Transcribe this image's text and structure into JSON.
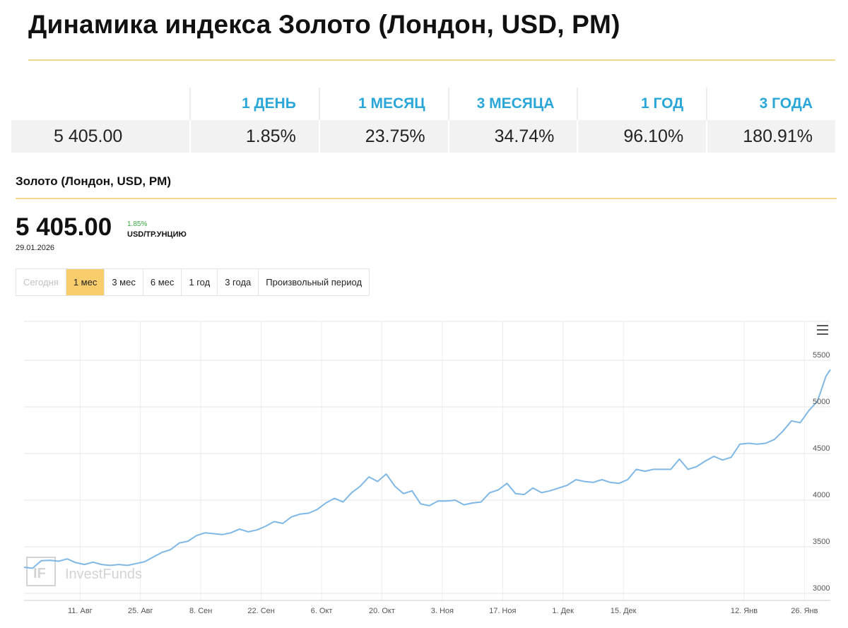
{
  "page": {
    "title": "Динамика индекса Золото (Лондон, USD, PM)"
  },
  "performance": {
    "headers": [
      "1 ДЕНЬ",
      "1 МЕСЯЦ",
      "3 МЕСЯЦА",
      "1 ГОД",
      "3 ГОДА"
    ],
    "price": "5 405.00",
    "values": [
      "1.85%",
      "23.75%",
      "34.74%",
      "96.10%",
      "180.91%"
    ]
  },
  "quote": {
    "name": "Золото (Лондон, USD, PM)",
    "price": "5 405.00",
    "change": "1.85%",
    "unit": "USD/ТР.УНЦИЮ",
    "date": "29.01.2026"
  },
  "periods": [
    {
      "label": "Сегодня",
      "state": "disabled"
    },
    {
      "label": "1 мес",
      "state": "active"
    },
    {
      "label": "3 мес",
      "state": "normal"
    },
    {
      "label": "6 мес",
      "state": "normal"
    },
    {
      "label": "1 год",
      "state": "normal"
    },
    {
      "label": "3 года",
      "state": "normal"
    },
    {
      "label": "Произвольный период",
      "state": "normal"
    }
  ],
  "watermark": "InvestFunds",
  "colors": {
    "accent": "#f9cd6b",
    "line": "#7fb8e6",
    "header": "#2aa7d8",
    "positive": "#3aa845"
  },
  "chart_data": {
    "type": "line",
    "title": "",
    "xlabel": "",
    "ylabel": "",
    "ylim": [
      3000,
      5750
    ],
    "yticks": [
      3000,
      3500,
      4000,
      4500,
      5000,
      5500
    ],
    "xticks": [
      {
        "label": "11. Авг",
        "x": 10
      },
      {
        "label": "25. Авг",
        "x": 24
      },
      {
        "label": "8. Сен",
        "x": 38
      },
      {
        "label": "22. Сен",
        "x": 52
      },
      {
        "label": "6. Окт",
        "x": 66
      },
      {
        "label": "20. Окт",
        "x": 80
      },
      {
        "label": "3. Ноя",
        "x": 94
      },
      {
        "label": "17. Ноя",
        "x": 108
      },
      {
        "label": "1. Дек",
        "x": 122
      },
      {
        "label": "15. Дек",
        "x": 136
      },
      {
        "label": "12. Янв",
        "x": 164
      },
      {
        "label": "26. Янв",
        "x": 178
      }
    ],
    "grid": true,
    "legend": "none",
    "series": [
      {
        "points": [
          [
            -3,
            3280
          ],
          [
            -1,
            3270
          ],
          [
            1,
            3350
          ],
          [
            3,
            3355
          ],
          [
            5,
            3345
          ],
          [
            7,
            3370
          ],
          [
            9,
            3330
          ],
          [
            11,
            3310
          ],
          [
            13,
            3335
          ],
          [
            15,
            3310
          ],
          [
            17,
            3300
          ],
          [
            19,
            3310
          ],
          [
            21,
            3300
          ],
          [
            23,
            3320
          ],
          [
            25,
            3340
          ],
          [
            27,
            3390
          ],
          [
            29,
            3440
          ],
          [
            31,
            3470
          ],
          [
            33,
            3540
          ],
          [
            35,
            3560
          ],
          [
            37,
            3620
          ],
          [
            39,
            3650
          ],
          [
            41,
            3640
          ],
          [
            43,
            3630
          ],
          [
            45,
            3650
          ],
          [
            47,
            3690
          ],
          [
            49,
            3660
          ],
          [
            51,
            3680
          ],
          [
            53,
            3720
          ],
          [
            55,
            3770
          ],
          [
            57,
            3750
          ],
          [
            59,
            3820
          ],
          [
            61,
            3850
          ],
          [
            63,
            3860
          ],
          [
            65,
            3900
          ],
          [
            67,
            3970
          ],
          [
            69,
            4020
          ],
          [
            71,
            3980
          ],
          [
            73,
            4080
          ],
          [
            75,
            4150
          ],
          [
            77,
            4250
          ],
          [
            79,
            4200
          ],
          [
            81,
            4280
          ],
          [
            83,
            4150
          ],
          [
            85,
            4070
          ],
          [
            87,
            4100
          ],
          [
            89,
            3960
          ],
          [
            91,
            3940
          ],
          [
            93,
            3990
          ],
          [
            95,
            3990
          ],
          [
            97,
            4000
          ],
          [
            99,
            3950
          ],
          [
            101,
            3970
          ],
          [
            103,
            3980
          ],
          [
            105,
            4080
          ],
          [
            107,
            4110
          ],
          [
            109,
            4180
          ],
          [
            111,
            4070
          ],
          [
            113,
            4060
          ],
          [
            115,
            4130
          ],
          [
            117,
            4080
          ],
          [
            119,
            4100
          ],
          [
            121,
            4130
          ],
          [
            123,
            4160
          ],
          [
            125,
            4220
          ],
          [
            127,
            4200
          ],
          [
            129,
            4190
          ],
          [
            131,
            4220
          ],
          [
            133,
            4190
          ],
          [
            135,
            4180
          ],
          [
            137,
            4220
          ],
          [
            139,
            4330
          ],
          [
            141,
            4310
          ],
          [
            143,
            4330
          ],
          [
            145,
            4330
          ],
          [
            147,
            4330
          ],
          [
            149,
            4440
          ],
          [
            151,
            4330
          ],
          [
            153,
            4360
          ],
          [
            155,
            4420
          ],
          [
            157,
            4470
          ],
          [
            159,
            4430
          ],
          [
            161,
            4460
          ],
          [
            163,
            4600
          ],
          [
            165,
            4610
          ],
          [
            167,
            4600
          ],
          [
            169,
            4610
          ],
          [
            171,
            4650
          ],
          [
            173,
            4740
          ],
          [
            175,
            4850
          ],
          [
            177,
            4830
          ],
          [
            179,
            4960
          ],
          [
            181,
            5060
          ],
          [
            183,
            5330
          ],
          [
            184,
            5400
          ]
        ]
      }
    ]
  }
}
